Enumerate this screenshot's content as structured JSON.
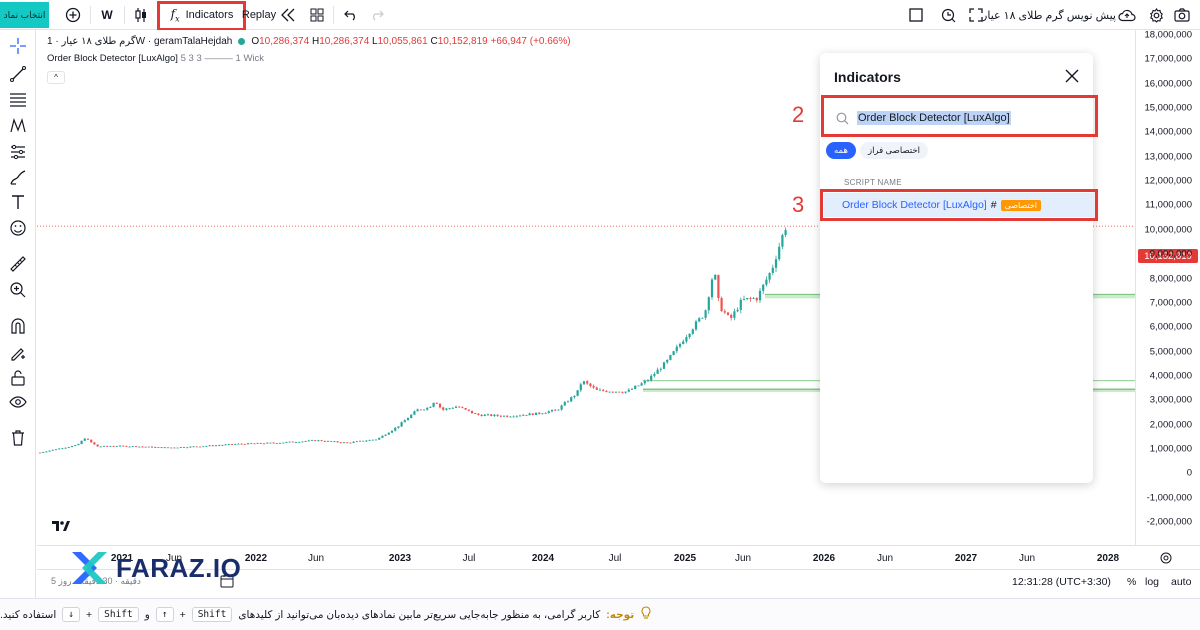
{
  "toolbar": {
    "symbol_button": "انتخاب نماد",
    "interval": "W",
    "indicators_label": "Indicators",
    "replay_label": "Replay",
    "chart_title": "پیش نویس گرم طلای ۱۸ عیار"
  },
  "legend": {
    "symbol": "گرم طلای ۱۸ عیار · 1W · geramTalaHejdah",
    "open_key": "O",
    "open": "10,286,374",
    "high_key": "H",
    "high": "10,286,374",
    "low_key": "L",
    "low": "10,055,861",
    "close_key": "C",
    "close": "10,152,819",
    "change": "+66,947 (+0.66%)",
    "indicator_name": "Order Block Detector [LuxAlgo]",
    "indicator_params": "5 3 3",
    "indicator_wick": "1 Wick",
    "collapse": "^"
  },
  "price_axis": {
    "labels": [
      "18,000,000",
      "17,000,000",
      "16,000,000",
      "15,000,000",
      "14,000,000",
      "13,000,000",
      "12,000,000",
      "11,000,000",
      "10,000,000",
      "9,000,000",
      "8,000,000",
      "7,000,000",
      "6,000,000",
      "5,000,000",
      "4,000,000",
      "3,000,000",
      "2,000,000",
      "1,000,000",
      "0",
      "-1,000,000",
      "-2,000,000"
    ],
    "current_price": "10,152,819"
  },
  "time_axis": {
    "labels": [
      {
        "text": "2021",
        "year": true
      },
      {
        "text": "Jun",
        "year": false
      },
      {
        "text": "2022",
        "year": true
      },
      {
        "text": "Jun",
        "year": false
      },
      {
        "text": "2023",
        "year": true
      },
      {
        "text": "Jul",
        "year": false
      },
      {
        "text": "2024",
        "year": true
      },
      {
        "text": "Jul",
        "year": false
      },
      {
        "text": "2025",
        "year": true
      },
      {
        "text": "Jun",
        "year": false
      },
      {
        "text": "2026",
        "year": true
      },
      {
        "text": "Jun",
        "year": false
      },
      {
        "text": "2027",
        "year": true
      },
      {
        "text": "Jun",
        "year": false
      },
      {
        "text": "2028",
        "year": true
      }
    ]
  },
  "statusbar": {
    "ranges": "5 دقیقه · 30 دقیقه · روز",
    "time": "12:31:28 (UTC+3:30)",
    "percent": "%",
    "log": "log",
    "auto": "auto"
  },
  "notice": {
    "label": "توجه:",
    "text_before": "کاربر گرامی، به منظور جابه‌جایی سریع‌تر مابین نمادهای دیده‌بان می‌توانید از کلیدهای",
    "key_shift": "Shift",
    "plus": "+",
    "key_up": "↑",
    "and": "و",
    "key_down": "↓",
    "text_after": "استفاده کنید."
  },
  "dialog": {
    "title": "Indicators",
    "search_value": "Order Block Detector [LuxAlgo]",
    "chips": [
      "همه",
      "اختصاصی فراز"
    ],
    "column_header": "SCRIPT NAME",
    "result_name": "Order Block Detector [LuxAlgo]",
    "result_hash": "#",
    "result_badge": "اختصاصی"
  },
  "annotations": {
    "step2": "2",
    "step3": "3"
  },
  "branding": {
    "logo_text": "FARAZ.IO"
  },
  "colors": {
    "accent": "#2962ff",
    "highlight": "#e53935",
    "up_candle": "#26a69a",
    "down_candle": "#ef5350",
    "symbol_button": "#14c8c4",
    "badge": "#ff9800"
  }
}
